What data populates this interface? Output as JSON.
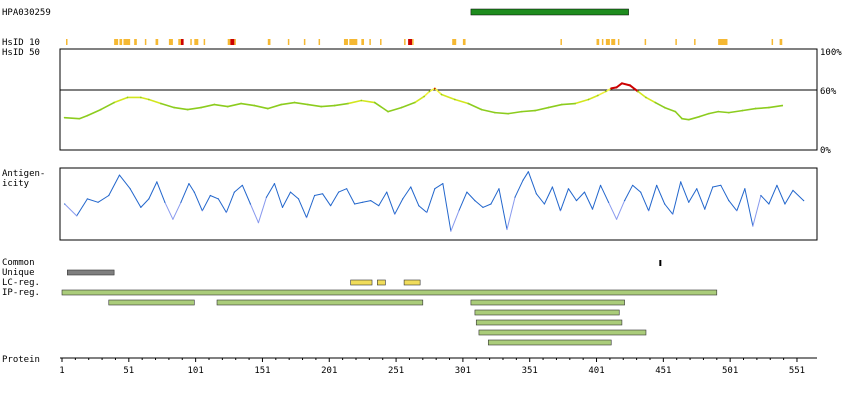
{
  "chart_data": {
    "type": "line",
    "antibody": "HPA030259",
    "protein_length": 560,
    "antibody_target": {
      "start": 307,
      "end": 425
    },
    "hsid": {
      "label_10": "HsID 10",
      "label_50": "HsID 50",
      "y_labels": [
        "100%",
        "60%",
        "0%"
      ],
      "threshold": 60,
      "ylim": [
        0,
        100
      ],
      "x": [
        3,
        14,
        20,
        30,
        40,
        50,
        60,
        66,
        75,
        85,
        95,
        105,
        115,
        125,
        135,
        145,
        155,
        165,
        175,
        185,
        195,
        205,
        215,
        225,
        235,
        245,
        255,
        265,
        272,
        276,
        280,
        285,
        295,
        305,
        315,
        325,
        335,
        345,
        355,
        365,
        375,
        385,
        395,
        402,
        408,
        412,
        416,
        420,
        426,
        432,
        438,
        445,
        452,
        460,
        465,
        470,
        478,
        485,
        492,
        500,
        510,
        520,
        530,
        540
      ],
      "values": [
        32,
        31,
        34,
        40,
        47,
        52,
        52,
        50,
        46,
        42,
        40,
        42,
        45,
        43,
        46,
        44,
        41,
        45,
        47,
        45,
        43,
        44,
        46,
        49,
        47,
        38,
        42,
        47,
        53,
        58,
        61,
        55,
        50,
        46,
        40,
        37,
        36,
        38,
        39,
        42,
        45,
        46,
        50,
        54,
        58,
        61,
        62,
        66,
        64,
        58,
        52,
        47,
        42,
        38,
        31,
        30,
        33,
        36,
        38,
        37,
        39,
        41,
        42,
        44
      ],
      "hits_10": [
        {
          "start": 4,
          "end": 5,
          "level": "mid"
        },
        {
          "start": 40,
          "end": 43,
          "level": "mid"
        },
        {
          "start": 44,
          "end": 46,
          "level": "mid"
        },
        {
          "start": 47,
          "end": 52,
          "level": "mid"
        },
        {
          "start": 55,
          "end": 57,
          "level": "mid"
        },
        {
          "start": 63,
          "end": 64,
          "level": "mid"
        },
        {
          "start": 71,
          "end": 73,
          "level": "mid"
        },
        {
          "start": 81,
          "end": 84,
          "level": "mid"
        },
        {
          "start": 88,
          "end": 90,
          "level": "mid"
        },
        {
          "start": 90,
          "end": 92,
          "level": "high"
        },
        {
          "start": 97,
          "end": 98,
          "level": "mid"
        },
        {
          "start": 100,
          "end": 103,
          "level": "mid"
        },
        {
          "start": 107,
          "end": 108,
          "level": "mid"
        },
        {
          "start": 125,
          "end": 127,
          "level": "mid"
        },
        {
          "start": 127,
          "end": 130,
          "level": "high"
        },
        {
          "start": 130,
          "end": 131,
          "level": "mid"
        },
        {
          "start": 155,
          "end": 157,
          "level": "mid"
        },
        {
          "start": 170,
          "end": 171,
          "level": "mid"
        },
        {
          "start": 182,
          "end": 183,
          "level": "mid"
        },
        {
          "start": 193,
          "end": 194,
          "level": "mid"
        },
        {
          "start": 212,
          "end": 215,
          "level": "mid"
        },
        {
          "start": 216,
          "end": 222,
          "level": "mid"
        },
        {
          "start": 225,
          "end": 227,
          "level": "mid"
        },
        {
          "start": 231,
          "end": 232,
          "level": "mid"
        },
        {
          "start": 239,
          "end": 240,
          "level": "mid"
        },
        {
          "start": 257,
          "end": 258,
          "level": "mid"
        },
        {
          "start": 260,
          "end": 263,
          "level": "high"
        },
        {
          "start": 263,
          "end": 264,
          "level": "mid"
        },
        {
          "start": 293,
          "end": 296,
          "level": "mid"
        },
        {
          "start": 301,
          "end": 303,
          "level": "mid"
        },
        {
          "start": 374,
          "end": 375,
          "level": "mid"
        },
        {
          "start": 401,
          "end": 403,
          "level": "mid"
        },
        {
          "start": 405,
          "end": 406,
          "level": "mid"
        },
        {
          "start": 408,
          "end": 411,
          "level": "mid"
        },
        {
          "start": 412,
          "end": 415,
          "level": "mid"
        },
        {
          "start": 417,
          "end": 418,
          "level": "mid"
        },
        {
          "start": 437,
          "end": 438,
          "level": "mid"
        },
        {
          "start": 460,
          "end": 461,
          "level": "mid"
        },
        {
          "start": 474,
          "end": 475,
          "level": "mid"
        },
        {
          "start": 492,
          "end": 499,
          "level": "mid"
        },
        {
          "start": 532,
          "end": 533,
          "level": "mid"
        },
        {
          "start": 538,
          "end": 540,
          "level": "mid"
        }
      ]
    },
    "antigenicity": {
      "label": "Antigen-\nicity",
      "ylim": [
        -1,
        1
      ],
      "x": [
        3,
        12,
        20,
        28,
        36,
        44,
        52,
        60,
        66,
        72,
        78,
        84,
        90,
        96,
        100,
        106,
        112,
        118,
        124,
        130,
        136,
        142,
        148,
        154,
        160,
        166,
        172,
        178,
        184,
        190,
        196,
        202,
        208,
        214,
        220,
        226,
        232,
        238,
        244,
        250,
        256,
        262,
        268,
        274,
        280,
        286,
        292,
        298,
        304,
        310,
        316,
        322,
        328,
        334,
        340,
        346,
        350,
        356,
        362,
        368,
        374,
        380,
        386,
        392,
        398,
        404,
        410,
        416,
        422,
        428,
        434,
        440,
        446,
        452,
        458,
        464,
        470,
        476,
        482,
        488,
        494,
        500,
        506,
        512,
        518,
        524,
        530,
        536,
        542,
        548,
        556
      ],
      "values": [
        0.0,
        -0.35,
        0.15,
        0.05,
        0.25,
        0.85,
        0.45,
        -0.1,
        0.15,
        0.65,
        0.05,
        -0.45,
        0.05,
        0.6,
        0.35,
        -0.2,
        0.25,
        0.15,
        -0.25,
        0.35,
        0.55,
        0.0,
        -0.55,
        0.2,
        0.6,
        -0.1,
        0.35,
        0.15,
        -0.4,
        0.25,
        0.3,
        -0.05,
        0.35,
        0.45,
        0.0,
        0.05,
        0.1,
        -0.05,
        0.35,
        -0.3,
        0.15,
        0.5,
        -0.05,
        -0.25,
        0.45,
        0.6,
        -0.8,
        -0.2,
        0.35,
        0.1,
        -0.1,
        0.0,
        0.45,
        -0.75,
        0.2,
        0.7,
        0.95,
        0.3,
        0.0,
        0.5,
        -0.2,
        0.45,
        0.1,
        0.35,
        -0.15,
        0.55,
        0.05,
        -0.45,
        0.1,
        0.55,
        0.35,
        -0.2,
        0.55,
        0.0,
        -0.3,
        0.65,
        0.05,
        0.45,
        -0.15,
        0.5,
        0.55,
        0.1,
        -0.2,
        0.45,
        -0.65,
        0.25,
        0.0,
        0.55,
        0.0,
        0.4,
        0.1
      ]
    },
    "tracks": [
      {
        "label": "Common",
        "bars": [
          {
            "start": 448,
            "end": 449,
            "kind": "common"
          }
        ]
      },
      {
        "label": "Unique",
        "bars": [
          {
            "start": 5,
            "end": 40,
            "kind": "unique"
          }
        ]
      },
      {
        "label": "LC-reg.",
        "bars": [
          {
            "start": 217,
            "end": 233,
            "kind": "lc"
          },
          {
            "start": 237,
            "end": 243,
            "kind": "lc"
          },
          {
            "start": 257,
            "end": 269,
            "kind": "lc"
          }
        ]
      },
      {
        "label": "IP-reg.",
        "bars": [
          {
            "start": 1,
            "end": 491,
            "kind": "ip"
          }
        ]
      },
      {
        "label": "",
        "bars": [
          {
            "start": 36,
            "end": 100,
            "kind": "ip"
          },
          {
            "start": 117,
            "end": 271,
            "kind": "ip"
          },
          {
            "start": 307,
            "end": 422,
            "kind": "ip"
          }
        ]
      },
      {
        "label": "",
        "bars": [
          {
            "start": 310,
            "end": 418,
            "kind": "ip"
          }
        ]
      },
      {
        "label": "",
        "bars": [
          {
            "start": 311,
            "end": 420,
            "kind": "ip"
          }
        ]
      },
      {
        "label": "",
        "bars": [
          {
            "start": 313,
            "end": 438,
            "kind": "ip"
          }
        ]
      },
      {
        "label": "",
        "bars": [
          {
            "start": 320,
            "end": 412,
            "kind": "ip"
          }
        ]
      }
    ],
    "protein_axis": {
      "label": "Protein",
      "ticks": [
        1,
        51,
        101,
        151,
        201,
        251,
        301,
        351,
        401,
        451,
        501,
        551
      ],
      "xlim": [
        1,
        560
      ]
    }
  },
  "colors": {
    "target": "#1e8c1e",
    "hit_mid": "#f5b833",
    "hit_high": "#cc0000",
    "hsid_low": "#8ccc1e",
    "hsid_mid": "#d2e61e",
    "hsid_high": "#f0f03c",
    "antigen_pos": "#2266cc",
    "antigen_neg": "#8899ee",
    "unique": "#7f7f7f",
    "lc": "#f0dc5a",
    "ip": "#aacc7a",
    "common": "#000000",
    "bar_stroke": "#333333"
  }
}
